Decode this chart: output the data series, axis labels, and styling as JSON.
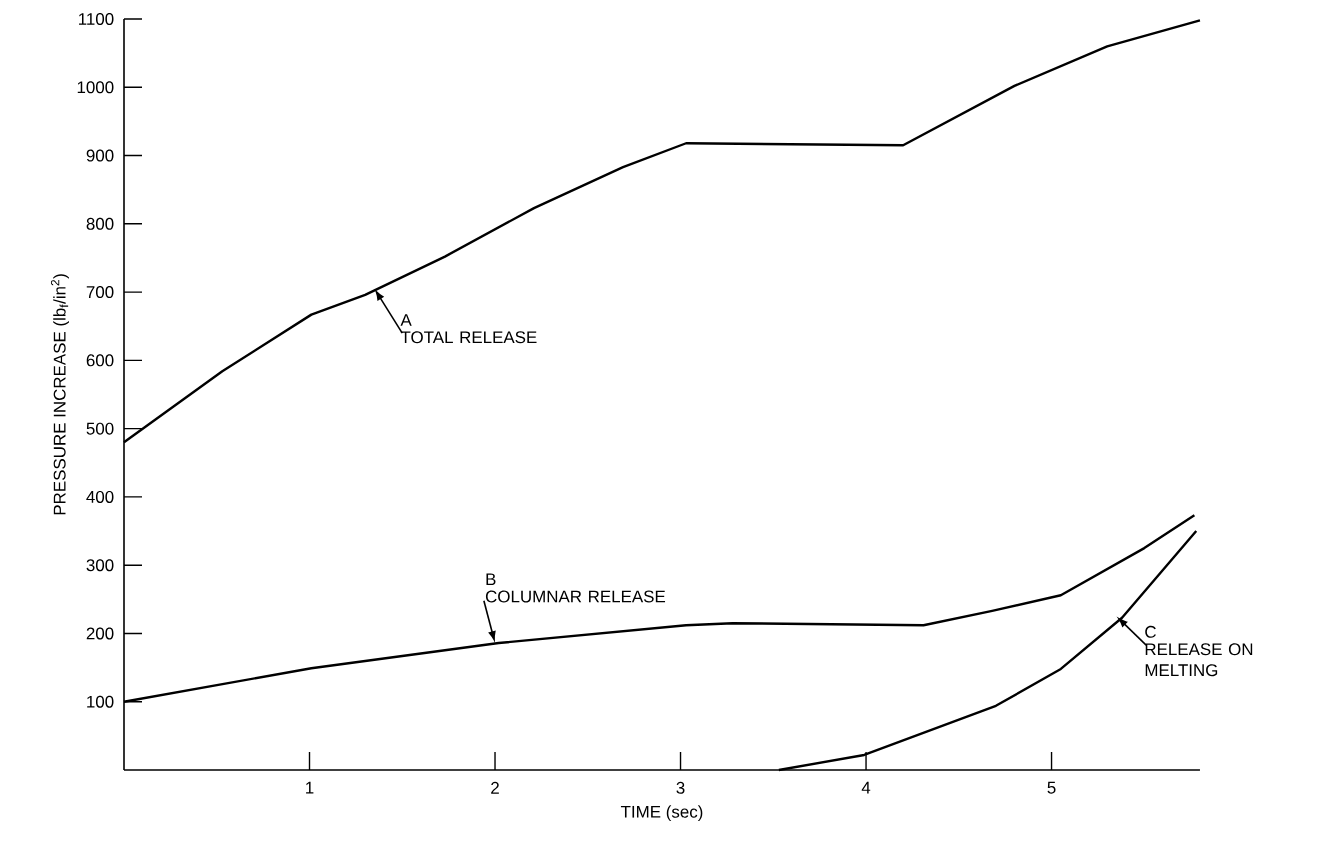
{
  "chart_data": {
    "type": "line",
    "xlabel": "TIME (sec)",
    "ylabel": "PRESSURE INCREASE (lb$_{f}$/in$^{2}$)",
    "xlim": [
      0,
      5.8
    ],
    "ylim": [
      0,
      1100
    ],
    "xticks": [
      1,
      2,
      3,
      4,
      5
    ],
    "yticks": [
      100,
      200,
      300,
      400,
      500,
      600,
      700,
      800,
      900,
      1000,
      1100
    ],
    "series": [
      {
        "color": "#000000",
        "x": [
          0,
          0.53,
          1.01,
          1.3,
          1.73,
          2.21,
          2.69,
          3.03,
          4.2,
          4.8,
          5.3,
          5.8
        ],
        "values": [
          480,
          584,
          667,
          696,
          752,
          823,
          883,
          918,
          915,
          1002,
          1060,
          1098
        ]
      },
      {
        "color": "#000000",
        "x": [
          0,
          1.01,
          2.02,
          3.03,
          3.28,
          4.31,
          4.68,
          5.05,
          5.5,
          5.77
        ],
        "values": [
          100,
          149,
          186,
          212,
          215,
          212,
          233,
          256,
          325,
          373
        ]
      },
      {
        "color": "#000000",
        "x": [
          3.53,
          3.99,
          4.7,
          5.05,
          5.38,
          5.78
        ],
        "values": [
          0,
          22,
          94,
          148,
          223,
          350
        ]
      }
    ],
    "annotations": [
      "A",
      {
        "text": "TOTAL RELEASE",
        "x": 1.35,
        "y": 705
      },
      "B",
      {
        "text": "COLUMNAR RELEASE",
        "x": 2.0,
        "y": 186
      },
      "C",
      {
        "text": "RELEASE ON MELTING",
        "x": 5.35,
        "y": 225
      }
    ]
  }
}
